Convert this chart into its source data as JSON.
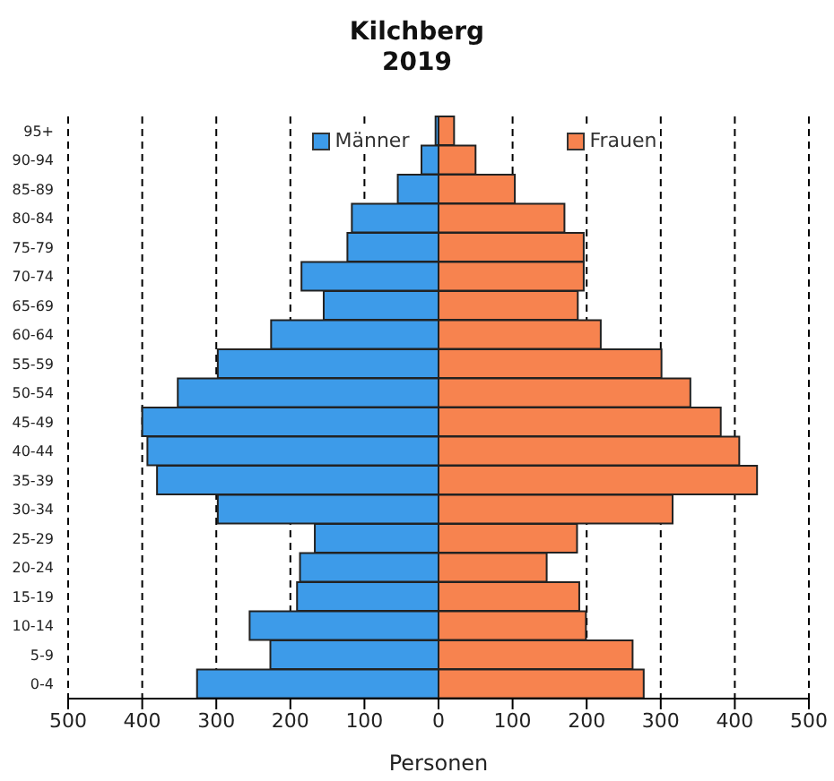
{
  "chart_data": {
    "type": "bar",
    "orientation": "horizontal",
    "stacked": true,
    "title": "Kilchberg",
    "subtitle": "2019",
    "xlabel": "Personen",
    "categories": [
      "95+",
      "90-94",
      "85-89",
      "80-84",
      "75-79",
      "70-74",
      "65-69",
      "60-64",
      "55-59",
      "50-54",
      "45-49",
      "40-44",
      "35-39",
      "30-34",
      "25-29",
      "20-24",
      "15-19",
      "10-14",
      "5-9",
      "0-4"
    ],
    "series": [
      {
        "name": "Männer",
        "color": "#3d9be9",
        "values": [
          -4,
          -23,
          -55,
          -117,
          -123,
          -185,
          -155,
          -226,
          -298,
          -352,
          -400,
          -393,
          -380,
          -298,
          -167,
          -187,
          -191,
          -255,
          -227,
          -326
        ]
      },
      {
        "name": "Frauen",
        "color": "#f7834f",
        "values": [
          21,
          50,
          103,
          170,
          196,
          196,
          188,
          219,
          301,
          340,
          381,
          406,
          430,
          316,
          187,
          146,
          190,
          199,
          262,
          277
        ]
      }
    ],
    "xlim": [
      -500,
      500
    ],
    "xticks": [
      {
        "value": -500,
        "label": "500"
      },
      {
        "value": -400,
        "label": "400"
      },
      {
        "value": -300,
        "label": "300"
      },
      {
        "value": -200,
        "label": "200"
      },
      {
        "value": -100,
        "label": "100"
      },
      0,
      100,
      200,
      300,
      400,
      500
    ],
    "grid": "x",
    "legend": "top"
  }
}
